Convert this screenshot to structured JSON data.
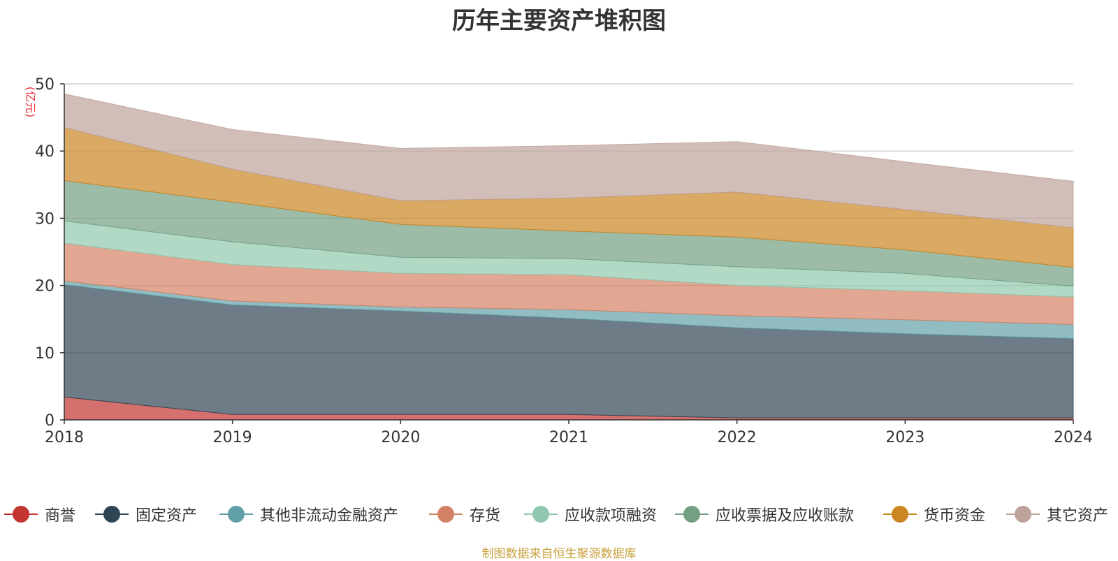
{
  "chart_data": {
    "type": "area",
    "stacked": true,
    "title": "历年主要资产堆积图",
    "ylabel": "(亿元)",
    "xlabel": "",
    "x": [
      "2018",
      "2019",
      "2020",
      "2021",
      "2022",
      "2023",
      "2024"
    ],
    "ylim": [
      0,
      50
    ],
    "yticks": [
      0,
      10,
      20,
      30,
      40,
      50
    ],
    "grid": true,
    "legend_position": "bottom",
    "series": [
      {
        "name": "商誉",
        "color": "#c23531",
        "values": [
          3.4,
          0.8,
          0.8,
          0.8,
          0.3,
          0.3,
          0.3
        ]
      },
      {
        "name": "固定资产",
        "color": "#2f4554",
        "values": [
          16.7,
          16.3,
          15.4,
          14.3,
          13.4,
          12.5,
          11.8
        ]
      },
      {
        "name": "其他非流动金融资产",
        "color": "#61a0a8",
        "values": [
          0.6,
          0.6,
          0.6,
          1.3,
          1.8,
          2.1,
          2.1
        ]
      },
      {
        "name": "存货",
        "color": "#d48265",
        "values": [
          5.6,
          5.4,
          5.0,
          5.2,
          4.5,
          4.3,
          4.1
        ]
      },
      {
        "name": "应收款项融资",
        "color": "#91c7ae",
        "values": [
          3.3,
          3.4,
          2.4,
          2.4,
          2.8,
          2.6,
          1.6
        ]
      },
      {
        "name": "应收票据及应收账款",
        "color": "#749f83",
        "values": [
          6.0,
          5.9,
          4.9,
          4.1,
          4.4,
          3.5,
          2.8
        ]
      },
      {
        "name": "货币资金",
        "color": "#ca8622",
        "values": [
          7.9,
          4.9,
          3.5,
          4.9,
          6.7,
          6.0,
          5.9
        ]
      },
      {
        "name": "其它资产",
        "color": "#bda29a",
        "values": [
          5.0,
          5.9,
          7.8,
          7.8,
          7.5,
          7.1,
          6.9
        ]
      }
    ]
  },
  "source_text": "制图数据来自恒生聚源数据库",
  "source_color": "#c8a03c",
  "axis_label_color": "#e8323c"
}
